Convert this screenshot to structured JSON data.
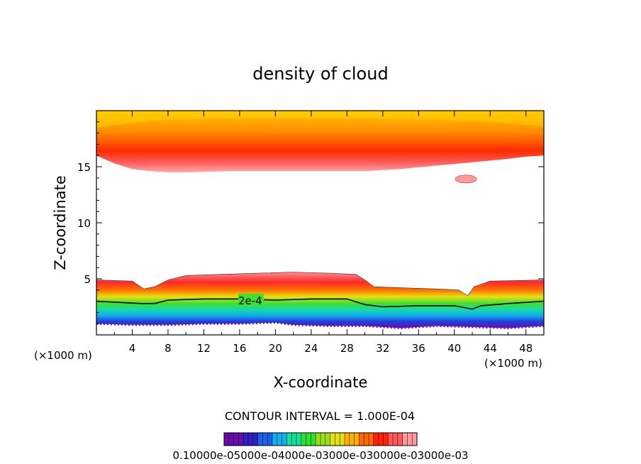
{
  "chart_data": {
    "type": "heatmap",
    "title": "density of cloud",
    "xlabel": "X-coordinate",
    "ylabel": "Z-coordinate",
    "x_unit_left": "(×1000 m)",
    "x_unit_right": "(×1000 m)",
    "xlim": [
      0,
      50
    ],
    "ylim": [
      0,
      20
    ],
    "x_ticks": [
      4,
      8,
      12,
      16,
      20,
      24,
      28,
      32,
      36,
      40,
      44,
      48
    ],
    "y_ticks": [
      5,
      10,
      15
    ],
    "contour_interval_text": "CONTOUR INTERVAL = 1.000E-04",
    "contour_label": "2e-4",
    "colorbar_labels_text": "0.10000e-05000e-04000e-03000e-030000e-03000e-03",
    "upper_band": {
      "base_z": [
        [
          0,
          16.0
        ],
        [
          2,
          15.3
        ],
        [
          4,
          14.8
        ],
        [
          6,
          14.6
        ],
        [
          8,
          14.5
        ],
        [
          10,
          14.5
        ],
        [
          15,
          14.6
        ],
        [
          20,
          14.6
        ],
        [
          25,
          14.6
        ],
        [
          30,
          14.6
        ],
        [
          34,
          14.8
        ],
        [
          38,
          15.1
        ],
        [
          42,
          15.4
        ],
        [
          46,
          15.7
        ],
        [
          48,
          15.9
        ],
        [
          50,
          16.0
        ]
      ],
      "core_z": [
        [
          0,
          18.5
        ],
        [
          6,
          19.1
        ],
        [
          12,
          19.3
        ],
        [
          20,
          19.3
        ],
        [
          30,
          19.3
        ],
        [
          38,
          19.2
        ],
        [
          44,
          19.0
        ],
        [
          50,
          18.6
        ]
      ]
    },
    "small_cloud": {
      "x": 41.3,
      "z": 13.9,
      "rx": 1.2,
      "rz": 0.35
    },
    "lower_band": {
      "top_z": [
        [
          0,
          4.9
        ],
        [
          4,
          4.8
        ],
        [
          5.3,
          4.1
        ],
        [
          6.5,
          4.3
        ],
        [
          8,
          4.9
        ],
        [
          10,
          5.3
        ],
        [
          14,
          5.4
        ],
        [
          18,
          5.5
        ],
        [
          22,
          5.6
        ],
        [
          26,
          5.5
        ],
        [
          29,
          5.4
        ],
        [
          30,
          4.9
        ],
        [
          31,
          4.3
        ],
        [
          34,
          4.2
        ],
        [
          38,
          4.1
        ],
        [
          40.5,
          4.0
        ],
        [
          41.5,
          3.5
        ],
        [
          42.2,
          4.3
        ],
        [
          44,
          4.8
        ],
        [
          50,
          4.9
        ]
      ],
      "line_2e4_z": [
        [
          0,
          3.0
        ],
        [
          5,
          2.8
        ],
        [
          6.5,
          2.8
        ],
        [
          8,
          3.1
        ],
        [
          12,
          3.2
        ],
        [
          16,
          3.2
        ],
        [
          20,
          3.1
        ],
        [
          24,
          3.2
        ],
        [
          28,
          3.2
        ],
        [
          30,
          2.7
        ],
        [
          32,
          2.5
        ],
        [
          36,
          2.6
        ],
        [
          40,
          2.6
        ],
        [
          42,
          2.3
        ],
        [
          43,
          2.6
        ],
        [
          46,
          2.8
        ],
        [
          50,
          3.0
        ]
      ],
      "base_z": [
        [
          0,
          1.0
        ],
        [
          4,
          0.9
        ],
        [
          8,
          0.9
        ],
        [
          12,
          1.0
        ],
        [
          16,
          1.0
        ],
        [
          20,
          1.1
        ],
        [
          22,
          0.9
        ],
        [
          26,
          0.8
        ],
        [
          30,
          0.8
        ],
        [
          34,
          0.6
        ],
        [
          38,
          0.8
        ],
        [
          42,
          0.7
        ],
        [
          46,
          0.6
        ],
        [
          50,
          0.8
        ]
      ]
    },
    "colors": [
      "#6a0dad",
      "#3020c0",
      "#1f5fe8",
      "#12b0f0",
      "#12e0a0",
      "#30e030",
      "#9ae012",
      "#e6e010",
      "#ffb000",
      "#ff6a00",
      "#ff2000",
      "#ff5a5a",
      "#ff9a9a"
    ]
  }
}
